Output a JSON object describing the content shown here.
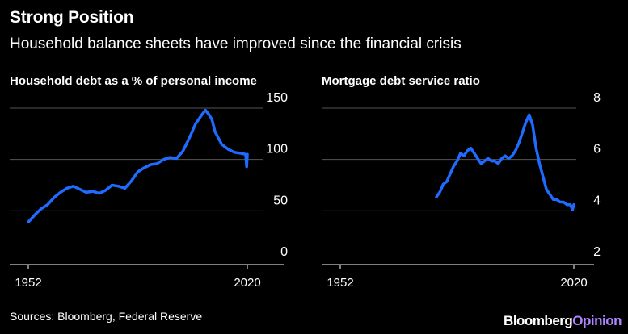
{
  "header": {
    "title": "Strong Position",
    "subtitle": "Household balance sheets have improved since the financial crisis"
  },
  "footer": {
    "source": "Sources: Bloomberg, Federal Reserve",
    "brand_part1": "Bloomberg",
    "brand_part2": "Opinion"
  },
  "colors": {
    "line": "#1f6bff",
    "background": "#000000",
    "text": "#ffffff",
    "grid": "#555555",
    "brand_accent": "#b084ff"
  },
  "chart_data": [
    {
      "type": "line",
      "title": "Household debt as a % of personal income",
      "xlabel": "",
      "ylabel": "",
      "xlim": [
        1952,
        2020
      ],
      "ylim": [
        0,
        150
      ],
      "x_ticks": [
        1952,
        2020
      ],
      "x_tick_labels": [
        "1952",
        "2020"
      ],
      "y_ticks": [
        0,
        50,
        100,
        150
      ],
      "y_tick_labels": [
        "0",
        "50",
        "100",
        "150"
      ],
      "grid": "horizontal",
      "legend": "none",
      "series": [
        {
          "x": [
            1952,
            1954,
            1956,
            1958,
            1960,
            1962,
            1964,
            1966,
            1968,
            1970,
            1972,
            1974,
            1976,
            1978,
            1980,
            1982,
            1984,
            1986,
            1988,
            1990,
            1992,
            1994,
            1996,
            1998,
            2000,
            2002,
            2004,
            2006,
            2007,
            2008,
            2009,
            2010,
            2012,
            2014,
            2016,
            2018,
            2019.5,
            2019.8,
            2020
          ],
          "y": [
            28,
            35,
            41,
            45,
            52,
            57,
            61,
            63,
            60,
            57,
            58,
            56,
            59,
            64,
            63,
            61,
            68,
            77,
            81,
            84,
            85,
            89,
            91,
            90,
            97,
            110,
            124,
            133,
            137,
            133,
            128,
            116,
            104,
            99,
            96,
            95,
            94,
            82,
            94
          ]
        }
      ]
    },
    {
      "type": "line",
      "title": "Mortgage debt service ratio",
      "xlabel": "",
      "ylabel": "",
      "xlim": [
        1952,
        2020
      ],
      "ylim": [
        2,
        8
      ],
      "x_ticks": [
        1952,
        2020
      ],
      "x_tick_labels": [
        "1952",
        "2020"
      ],
      "y_ticks": [
        2,
        4,
        6,
        8
      ],
      "y_tick_labels": [
        "2",
        "4",
        "6",
        "8"
      ],
      "grid": "horizontal",
      "legend": "none",
      "series": [
        {
          "x": [
            1980,
            1981,
            1982,
            1983,
            1984,
            1985,
            1986,
            1987,
            1988,
            1989,
            1990,
            1991,
            1992,
            1993,
            1994,
            1995,
            1996,
            1997,
            1998,
            1999,
            2000,
            2001,
            2002,
            2003,
            2004,
            2005,
            2006,
            2007,
            2008,
            2009,
            2010,
            2011,
            2012,
            2013,
            2014,
            2015,
            2016,
            2017,
            2018,
            2019,
            2019.6,
            2020
          ],
          "y": [
            4.1,
            4.3,
            4.6,
            4.7,
            5.0,
            5.3,
            5.5,
            5.8,
            5.7,
            5.9,
            6.0,
            5.8,
            5.6,
            5.4,
            5.5,
            5.6,
            5.5,
            5.5,
            5.4,
            5.6,
            5.7,
            5.6,
            5.7,
            5.9,
            6.2,
            6.6,
            7.0,
            7.3,
            6.9,
            6.0,
            5.4,
            4.9,
            4.4,
            4.2,
            4.0,
            4.0,
            3.9,
            3.9,
            3.8,
            3.8,
            3.6,
            3.8
          ]
        }
      ]
    }
  ]
}
